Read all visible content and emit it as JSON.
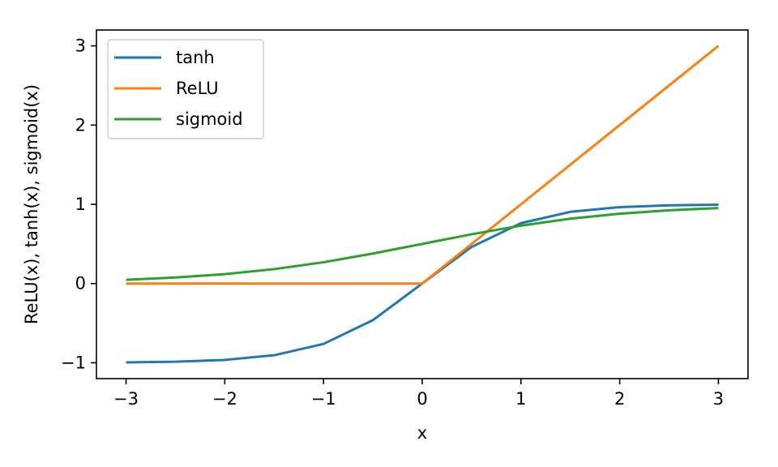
{
  "chart_data": {
    "type": "line",
    "title": "",
    "xlabel": "x",
    "ylabel": "ReLU(x), tanh(x), sigmoid(x)",
    "xlim": [
      -3.3,
      3.3
    ],
    "ylim": [
      -1.2,
      3.2
    ],
    "xticks": [
      -3,
      -2,
      -1,
      0,
      1,
      2,
      3
    ],
    "yticks": [
      -1,
      0,
      1,
      2,
      3
    ],
    "xtick_labels": [
      "−3",
      "−2",
      "−1",
      "0",
      "1",
      "2",
      "3"
    ],
    "ytick_labels": [
      "−1",
      "0",
      "1",
      "2",
      "3"
    ],
    "grid": false,
    "legend_position": "top-left",
    "x": [
      -3,
      -2.5,
      -2,
      -1.5,
      -1,
      -0.5,
      0,
      0.5,
      1,
      1.5,
      2,
      2.5,
      3
    ],
    "series": [
      {
        "name": "tanh",
        "color": "#1f77b4",
        "values": [
          -0.995,
          -0.987,
          -0.964,
          -0.905,
          -0.762,
          -0.462,
          0,
          0.462,
          0.762,
          0.905,
          0.964,
          0.987,
          0.995
        ]
      },
      {
        "name": "ReLU",
        "color": "#ff7f0e",
        "values": [
          0,
          0,
          0,
          0,
          0,
          0,
          0,
          0.5,
          1,
          1.5,
          2,
          2.5,
          3
        ]
      },
      {
        "name": "sigmoid",
        "color": "#2ca02c",
        "values": [
          0.047,
          0.076,
          0.119,
          0.182,
          0.269,
          0.378,
          0.5,
          0.622,
          0.731,
          0.818,
          0.881,
          0.924,
          0.953
        ]
      }
    ]
  }
}
